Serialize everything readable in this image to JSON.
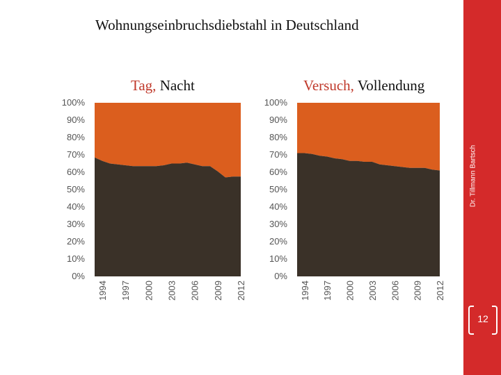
{
  "slide": {
    "title": "Wohnungseinbruchsdiebstahl in Deutschland",
    "credit": "Dr. Tillmann Bartsch",
    "page_number": "12"
  },
  "colors": {
    "lower": "#3a3128",
    "upper": "#db5e1e",
    "sidebar": "#d42a2a",
    "subtitle_accent": "#c0392b"
  },
  "chart_data": [
    {
      "type": "area",
      "title_first": "Tag,",
      "title_second": "Nacht",
      "stacked_percent": true,
      "ylim": [
        0,
        100
      ],
      "yticks": [
        "0%",
        "10%",
        "20%",
        "30%",
        "40%",
        "50%",
        "60%",
        "70%",
        "80%",
        "90%",
        "100%"
      ],
      "xticks": [
        "1994",
        "1997",
        "2000",
        "2003",
        "2006",
        "2009",
        "2012"
      ],
      "x": [
        1993,
        1994,
        1995,
        1996,
        1997,
        1998,
        1999,
        2000,
        2001,
        2002,
        2003,
        2004,
        2005,
        2006,
        2007,
        2008,
        2009,
        2010,
        2011,
        2012
      ],
      "series": [
        {
          "values": [
            68.5,
            66.5,
            65.0,
            64.5,
            64.0,
            63.5,
            63.5,
            63.5,
            63.5,
            64.0,
            65.0,
            65.0,
            65.5,
            64.5,
            63.5,
            63.5,
            60.5,
            57.0,
            57.5,
            57.5
          ]
        },
        {
          "values": [
            31.5,
            33.5,
            35.0,
            35.5,
            36.0,
            36.5,
            36.5,
            36.5,
            36.5,
            36.0,
            35.0,
            35.0,
            34.5,
            35.5,
            36.5,
            36.5,
            39.5,
            43.0,
            42.5,
            42.5
          ]
        }
      ]
    },
    {
      "type": "area",
      "title_first": "Versuch,",
      "title_second": "Vollendung",
      "stacked_percent": true,
      "ylim": [
        0,
        100
      ],
      "yticks": [
        "0%",
        "10%",
        "20%",
        "30%",
        "40%",
        "50%",
        "60%",
        "70%",
        "80%",
        "90%",
        "100%"
      ],
      "xticks": [
        "1994",
        "1997",
        "2000",
        "2003",
        "2006",
        "2009",
        "2012"
      ],
      "x": [
        1993,
        1994,
        1995,
        1996,
        1997,
        1998,
        1999,
        2000,
        2001,
        2002,
        2003,
        2004,
        2005,
        2006,
        2007,
        2008,
        2009,
        2010,
        2011,
        2012
      ],
      "series": [
        {
          "values": [
            71.0,
            71.0,
            70.5,
            69.5,
            69.0,
            68.0,
            67.5,
            66.5,
            66.5,
            66.0,
            66.0,
            64.5,
            64.0,
            63.5,
            63.0,
            62.5,
            62.5,
            62.5,
            61.5,
            61.0
          ]
        },
        {
          "values": [
            29.0,
            29.0,
            29.5,
            30.5,
            31.0,
            32.0,
            32.5,
            33.5,
            33.5,
            34.0,
            34.0,
            35.5,
            36.0,
            36.5,
            37.0,
            37.5,
            37.5,
            37.5,
            38.5,
            39.0
          ]
        }
      ]
    }
  ]
}
